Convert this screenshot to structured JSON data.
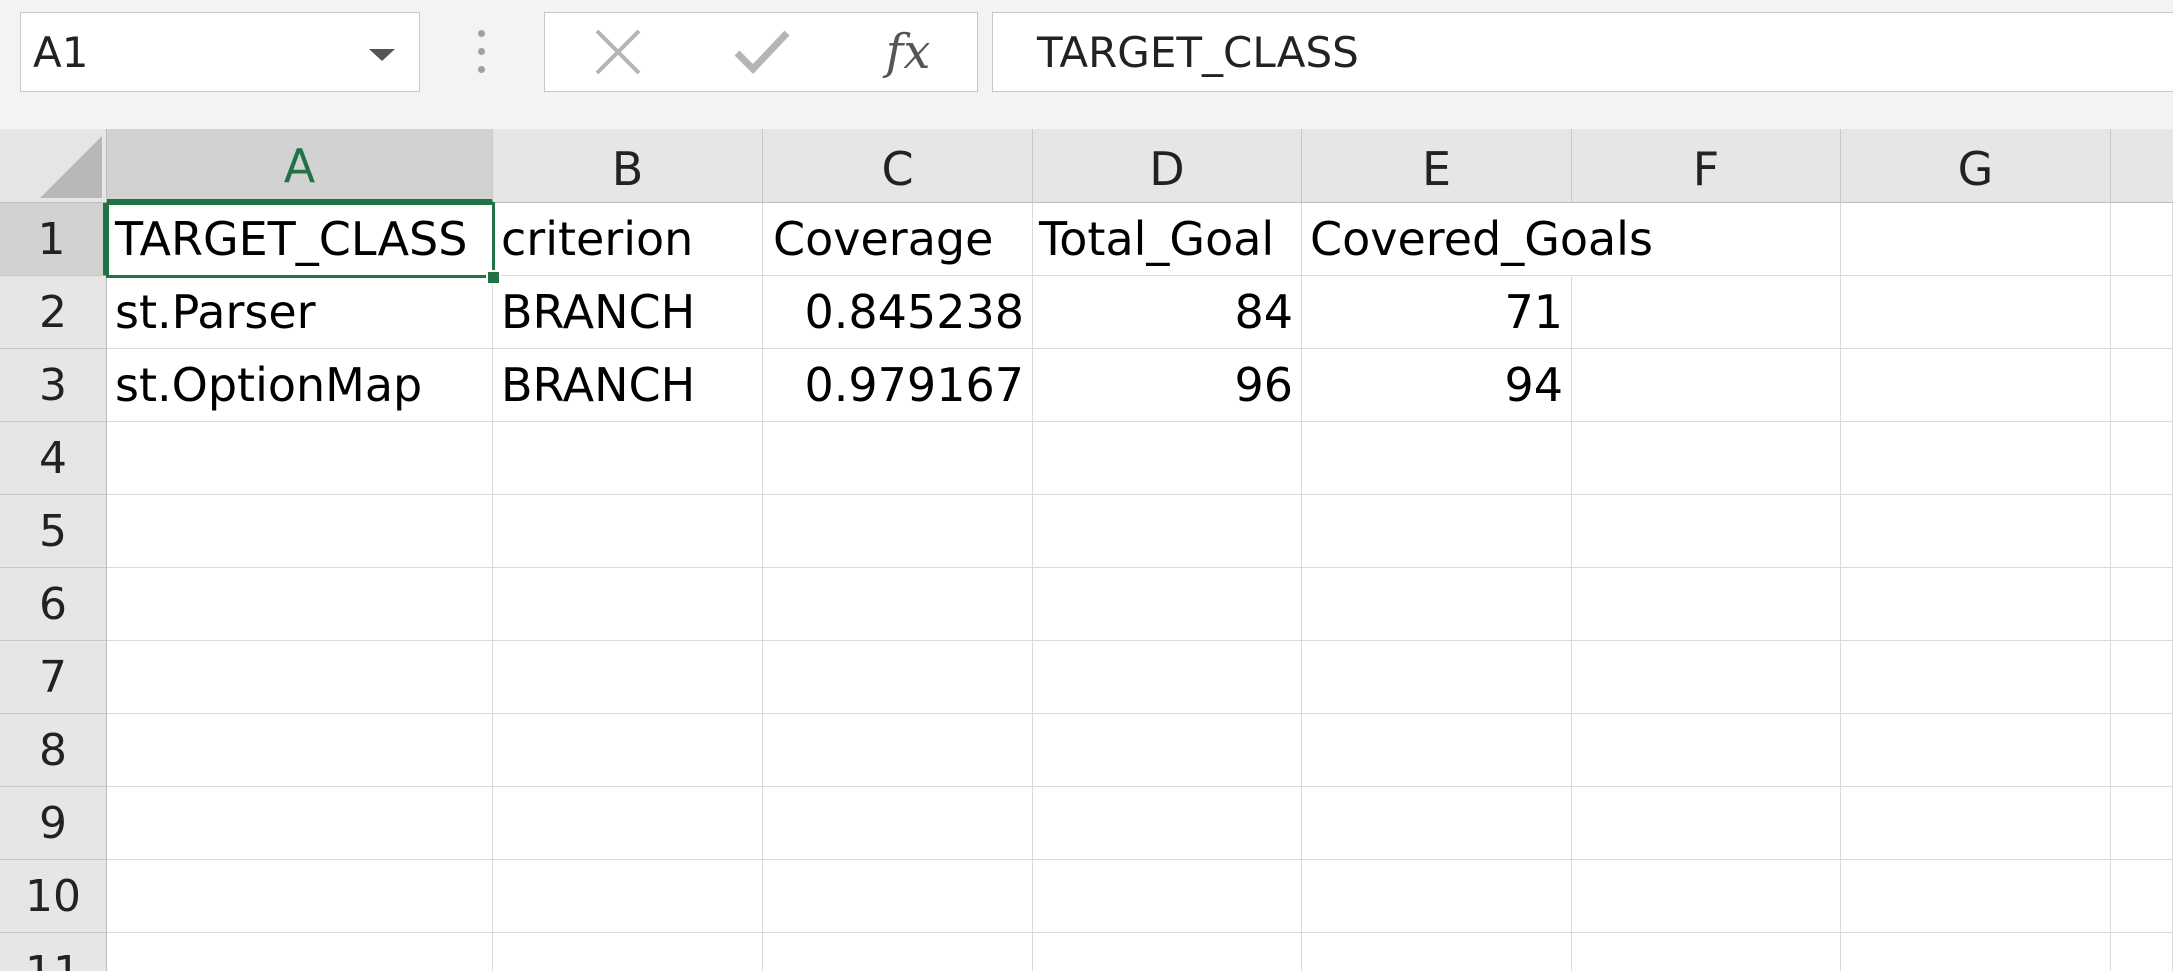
{
  "formula_bar": {
    "name_box": "A1",
    "cancel_icon": "x-icon",
    "enter_icon": "check-icon",
    "fx_label": "fx",
    "formula": "TARGET_CLASS"
  },
  "grid": {
    "columns": [
      "A",
      "B",
      "C",
      "D",
      "E",
      "F",
      "G"
    ],
    "rows": [
      "1",
      "2",
      "3",
      "4",
      "5",
      "6",
      "7",
      "8",
      "9",
      "10",
      "11"
    ],
    "selected_column": "A",
    "selected_row": "1",
    "cells": {
      "r1": [
        "TARGET_CLASS",
        "criterion",
        "Coverage",
        "Total_Goal",
        "Covered_Goals"
      ],
      "r2": [
        "st.Parser",
        "BRANCH",
        "0.845238",
        "84",
        "71"
      ],
      "r3": [
        "st.OptionMap",
        "BRANCH",
        "0.979167",
        "96",
        "94"
      ]
    }
  },
  "colors": {
    "accent": "#217346",
    "header_bg": "#e6e6e6",
    "selected_header_bg": "#d2d2d2",
    "gridline": "#dadada"
  }
}
